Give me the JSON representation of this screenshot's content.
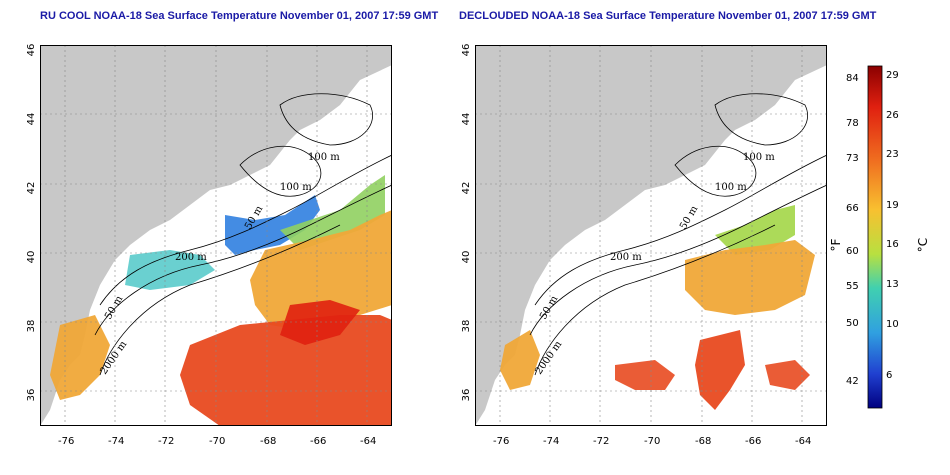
{
  "titles": {
    "left": "RU COOL NOAA-18 Sea Surface Temperature November 01, 2007 17:59 GMT",
    "right": "DECLOUDED NOAA-18 Sea Surface Temperature November 01, 2007 17:59 GMT"
  },
  "axes": {
    "x_ticks": [
      "-76",
      "-74",
      "-72",
      "-70",
      "-68",
      "-66",
      "-64"
    ],
    "y_ticks": [
      "46",
      "44",
      "42",
      "40",
      "38",
      "36"
    ],
    "xlim": [
      -77,
      -63
    ],
    "ylim": [
      35,
      46
    ]
  },
  "contour_labels": [
    "100 m",
    "100 m",
    "50 m",
    "200 m",
    "50 m",
    "2000 m"
  ],
  "colorbar": {
    "celsius_ticks": [
      "29",
      "26",
      "23",
      "19",
      "16",
      "13",
      "10",
      "6"
    ],
    "fahrenheit_ticks": [
      "84",
      "78",
      "73",
      "66",
      "60",
      "55",
      "50",
      "42"
    ],
    "celsius_unit": "°C",
    "fahrenheit_unit": "°F",
    "range_c": [
      3,
      30
    ]
  },
  "colors": {
    "land": "#c8c8c8",
    "title": "#1a1aa6",
    "warm": "#e03010",
    "mid": "#f0a030",
    "cool": "#3070e0"
  }
}
